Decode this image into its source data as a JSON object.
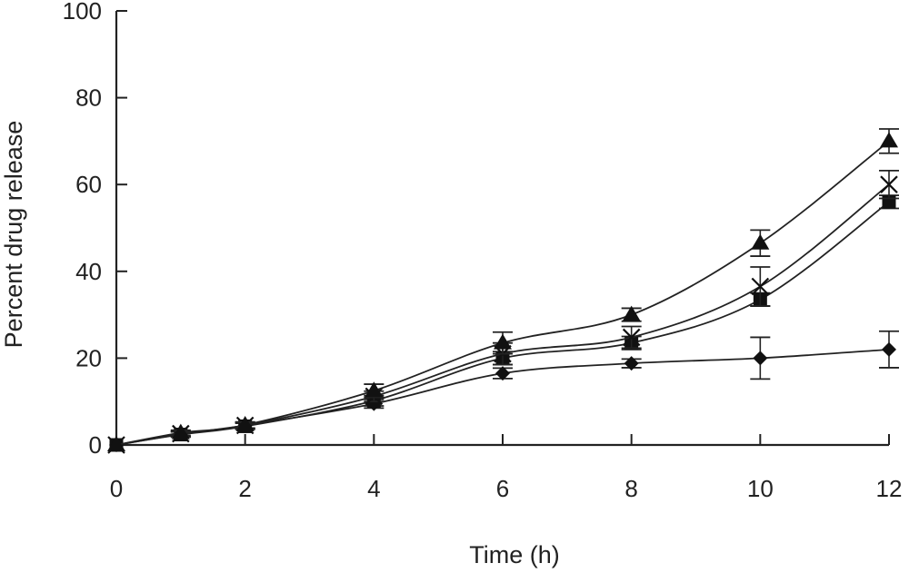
{
  "chart_data": {
    "type": "line",
    "xlabel": "Time (h)",
    "ylabel": "Percent drug release",
    "xlim": [
      0,
      12
    ],
    "ylim": [
      0,
      100
    ],
    "xticks": [
      0,
      2,
      4,
      6,
      8,
      10,
      12
    ],
    "yticks": [
      0,
      20,
      40,
      60,
      80,
      100
    ],
    "grid": false,
    "legend": "none",
    "series": [
      {
        "marker": "diamond",
        "x": [
          0,
          1,
          2,
          4,
          6,
          8,
          10,
          12
        ],
        "y": [
          0,
          2.5,
          4.5,
          9.5,
          16.5,
          18.8,
          20.0,
          22.0
        ],
        "error": [
          0,
          0.6,
          0.7,
          1.0,
          1.2,
          1.0,
          4.8,
          4.2
        ]
      },
      {
        "marker": "square",
        "x": [
          0,
          1,
          2,
          4,
          6,
          8,
          10,
          12
        ],
        "y": [
          0,
          2.4,
          4.3,
          10.2,
          20.0,
          23.5,
          33.5,
          56.0
        ],
        "error": [
          0,
          0.6,
          0.7,
          1.2,
          1.5,
          1.5,
          1.5,
          1.5
        ]
      },
      {
        "marker": "x",
        "x": [
          0,
          1,
          2,
          4,
          6,
          8,
          10,
          12
        ],
        "y": [
          0,
          2.6,
          4.5,
          11.2,
          21.0,
          24.8,
          36.5,
          60.0
        ],
        "error": [
          0,
          0.6,
          0.7,
          1.2,
          2.5,
          2.5,
          4.5,
          3.2
        ]
      },
      {
        "marker": "triangle",
        "x": [
          0,
          1,
          2,
          4,
          6,
          8,
          10,
          12
        ],
        "y": [
          0,
          2.8,
          4.6,
          12.5,
          23.5,
          30.0,
          46.5,
          70.0
        ],
        "error": [
          0,
          0.6,
          0.7,
          1.5,
          2.5,
          1.5,
          3.0,
          2.8
        ]
      }
    ]
  }
}
